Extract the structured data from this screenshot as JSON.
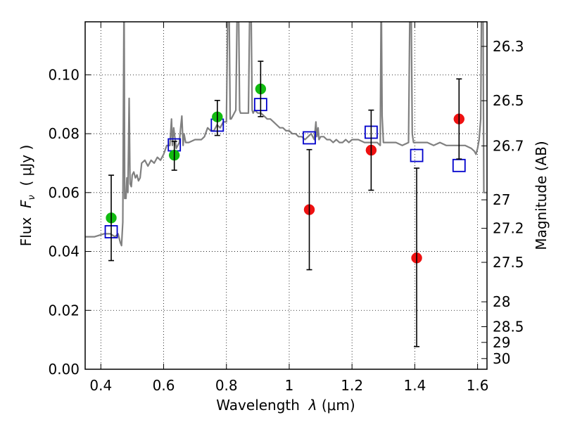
{
  "chart_data": {
    "type": "scatter",
    "xlabel_text": "Wavelength",
    "xlabel_symbol": "λ",
    "xlabel_unit": "(μm)",
    "ylabel_text": "Flux",
    "ylabel_symbol": "F",
    "ylabel_symbol_sub": "ν",
    "ylabel_unit": "( μJy )",
    "y2label": "Magnitude (AB)",
    "xlim": [
      0.35,
      1.63
    ],
    "ylim": [
      0.0,
      0.118
    ],
    "grid": true,
    "x_ticks": [
      0.4,
      0.6,
      0.8,
      1.0,
      1.2,
      1.4,
      1.6
    ],
    "x_tick_labels": [
      "0.4",
      "0.6",
      "0.8",
      "1",
      "1.2",
      "1.4",
      "1.6"
    ],
    "y_ticks": [
      0.0,
      0.02,
      0.04,
      0.06,
      0.08,
      0.1
    ],
    "y_tick_labels": [
      "0.00",
      "0.02",
      "0.04",
      "0.06",
      "0.08",
      "0.10"
    ],
    "y2_ticks": [
      26.3,
      26.5,
      26.7,
      27,
      27.2,
      27.5,
      28,
      28.5,
      29,
      30
    ],
    "y2_tick_labels": [
      "26.3",
      "26.5",
      "26.7",
      "27",
      "27.2",
      "27.5",
      "28",
      "28.5",
      "29",
      "30"
    ],
    "series": [
      {
        "kind": "line",
        "color": "#808080",
        "x": [
          0.35,
          0.38,
          0.41,
          0.43,
          0.445,
          0.455,
          0.462,
          0.466,
          0.47,
          0.472,
          0.474,
          0.476,
          0.478,
          0.48,
          0.483,
          0.486,
          0.488,
          0.49,
          0.493,
          0.497,
          0.5,
          0.505,
          0.51,
          0.515,
          0.52,
          0.525,
          0.53,
          0.54,
          0.55,
          0.56,
          0.57,
          0.58,
          0.59,
          0.6,
          0.61,
          0.62,
          0.625,
          0.628,
          0.632,
          0.64,
          0.65,
          0.655,
          0.658,
          0.662,
          0.665,
          0.67,
          0.68,
          0.7,
          0.72,
          0.73,
          0.74,
          0.75,
          0.76,
          0.77,
          0.78,
          0.79,
          0.8,
          0.805,
          0.808,
          0.812,
          0.815,
          0.82,
          0.83,
          0.835,
          0.838,
          0.842,
          0.845,
          0.85,
          0.86,
          0.87,
          0.875,
          0.878,
          0.882,
          0.885,
          0.89,
          0.9,
          0.91,
          0.92,
          0.93,
          0.94,
          0.95,
          0.96,
          0.97,
          0.98,
          0.99,
          1.0,
          1.01,
          1.02,
          1.03,
          1.04,
          1.05,
          1.06,
          1.07,
          1.08,
          1.085,
          1.088,
          1.092,
          1.095,
          1.1,
          1.11,
          1.12,
          1.13,
          1.14,
          1.15,
          1.16,
          1.17,
          1.18,
          1.19,
          1.2,
          1.22,
          1.24,
          1.26,
          1.28,
          1.29,
          1.293,
          1.296,
          1.3,
          1.31,
          1.32,
          1.34,
          1.36,
          1.38,
          1.385,
          1.388,
          1.392,
          1.396,
          1.4,
          1.42,
          1.44,
          1.46,
          1.48,
          1.5,
          1.52,
          1.54,
          1.56,
          1.58,
          1.59,
          1.595,
          1.6,
          1.605,
          1.61,
          1.613,
          1.617,
          1.62,
          1.63
        ],
        "y": [
          0.045,
          0.045,
          0.046,
          0.046,
          0.045,
          0.046,
          0.043,
          0.042,
          0.05,
          0.09,
          0.13,
          0.058,
          0.06,
          0.058,
          0.065,
          0.06,
          0.075,
          0.092,
          0.063,
          0.062,
          0.066,
          0.067,
          0.065,
          0.066,
          0.064,
          0.065,
          0.07,
          0.071,
          0.069,
          0.071,
          0.07,
          0.072,
          0.071,
          0.073,
          0.076,
          0.076,
          0.085,
          0.076,
          0.082,
          0.075,
          0.077,
          0.083,
          0.086,
          0.076,
          0.08,
          0.077,
          0.077,
          0.078,
          0.078,
          0.079,
          0.082,
          0.081,
          0.081,
          0.083,
          0.082,
          0.084,
          0.084,
          0.13,
          0.13,
          0.085,
          0.085,
          0.086,
          0.088,
          0.13,
          0.13,
          0.088,
          0.087,
          0.087,
          0.087,
          0.087,
          0.13,
          0.13,
          0.088,
          0.087,
          0.088,
          0.087,
          0.087,
          0.086,
          0.085,
          0.085,
          0.084,
          0.083,
          0.082,
          0.082,
          0.081,
          0.081,
          0.08,
          0.08,
          0.079,
          0.079,
          0.078,
          0.079,
          0.08,
          0.078,
          0.084,
          0.079,
          0.082,
          0.078,
          0.079,
          0.079,
          0.078,
          0.078,
          0.077,
          0.078,
          0.077,
          0.077,
          0.078,
          0.077,
          0.078,
          0.078,
          0.077,
          0.077,
          0.077,
          0.076,
          0.13,
          0.086,
          0.077,
          0.077,
          0.077,
          0.077,
          0.076,
          0.077,
          0.13,
          0.13,
          0.08,
          0.077,
          0.077,
          0.077,
          0.077,
          0.076,
          0.077,
          0.076,
          0.076,
          0.076,
          0.076,
          0.075,
          0.074,
          0.073,
          0.075,
          0.078,
          0.085,
          0.13,
          0.13,
          0.06,
          0.06
        ]
      },
      {
        "kind": "open-squares",
        "color": "#0000cc",
        "x": [
          0.433,
          0.634,
          0.771,
          0.909,
          1.064,
          1.261,
          1.406,
          1.541
        ],
        "y": [
          0.0467,
          0.0762,
          0.0829,
          0.0899,
          0.0786,
          0.0805,
          0.0726,
          0.0692
        ]
      },
      {
        "kind": "filled-circles",
        "color": "#11bb11",
        "x": [
          0.433,
          0.634,
          0.771,
          0.909
        ],
        "y": [
          0.0514,
          0.0727,
          0.0857,
          0.0952
        ]
      },
      {
        "kind": "filled-circles",
        "color": "#ee1111",
        "x": [
          1.064,
          1.261,
          1.406,
          1.541
        ],
        "y": [
          0.0542,
          0.0744,
          0.0378,
          0.085
        ]
      },
      {
        "kind": "errorbars",
        "color": "#000000",
        "x": [
          0.433,
          0.634,
          0.771,
          0.909,
          1.064,
          1.261,
          1.406,
          1.541
        ],
        "y_low": [
          0.0369,
          0.0676,
          0.0794,
          0.0858,
          0.0338,
          0.0608,
          0.0077,
          0.0714
        ],
        "y_high": [
          0.0659,
          0.0774,
          0.0913,
          0.1046,
          0.0746,
          0.088,
          0.0683,
          0.0986
        ]
      }
    ]
  }
}
